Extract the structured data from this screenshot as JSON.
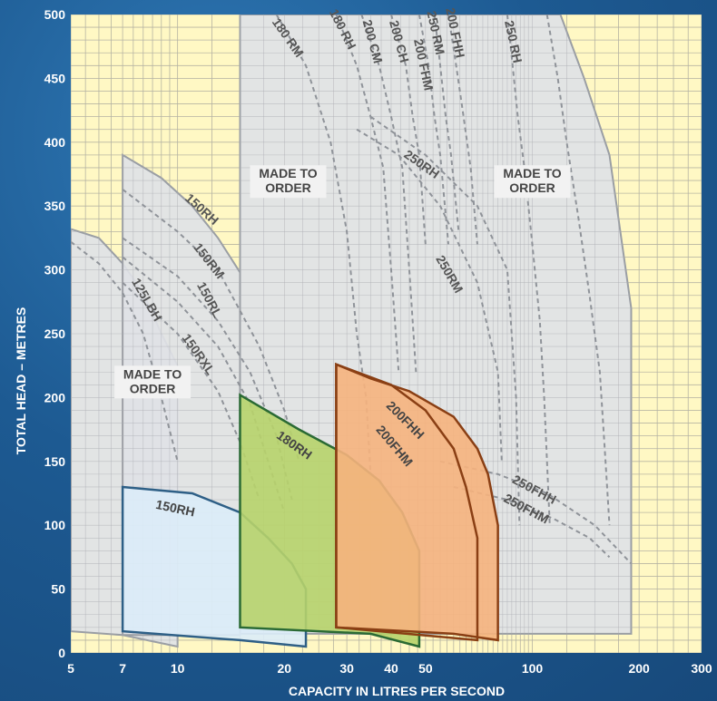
{
  "chart_data": {
    "type": "area",
    "title": "",
    "xlabel": "CAPACITY IN LITRES PER SECOND",
    "ylabel": "TOTAL HEAD – METRES",
    "xscale": "log",
    "xlim": [
      5,
      300
    ],
    "ylim": [
      0,
      500
    ],
    "x_ticks": [
      5,
      7,
      10,
      20,
      30,
      40,
      50,
      100,
      200,
      300
    ],
    "y_ticks": [
      0,
      50,
      100,
      150,
      200,
      250,
      300,
      350,
      400,
      450,
      500
    ],
    "grid": true,
    "colors": {
      "plot_background": "#fff8c4",
      "envelope_fill": "#e0e2e6",
      "envelope_edge": "#9a9ea4",
      "dashed_curve": "#8f9399",
      "150RH_fill": "#dcecf8",
      "150RH_edge": "#2e5f86",
      "180RH_fill": "#b7d36a",
      "180RH_edge": "#2a6a34",
      "200F_fill": "#f6b27d",
      "200F_edge": "#8a3f14"
    },
    "envelopes": [
      {
        "x": [
          5,
          7,
          10,
          10,
          5
        ],
        "y": [
          17,
          14,
          5,
          330,
          330
        ],
        "shape": [
          [
            5,
            17
          ],
          [
            7,
            14
          ],
          [
            10,
            5
          ],
          [
            10,
            0
          ],
          [
            5,
            0
          ]
        ]
      },
      {
        "top": [
          [
            5,
            332
          ],
          [
            6,
            325
          ],
          [
            7,
            305
          ],
          [
            8,
            280
          ],
          [
            9,
            250
          ],
          [
            10,
            225
          ],
          [
            10,
            0
          ]
        ]
      },
      {
        "top": [
          [
            7,
            390
          ],
          [
            9,
            372
          ],
          [
            11,
            350
          ],
          [
            13,
            325
          ],
          [
            15,
            300
          ],
          [
            15,
            0
          ],
          [
            7,
            0
          ]
        ]
      },
      {
        "top": [
          [
            15,
            500
          ],
          [
            120,
            500
          ],
          [
            140,
            450
          ],
          [
            165,
            390
          ],
          [
            190,
            270
          ],
          [
            190,
            15
          ],
          [
            15,
            15
          ]
        ]
      }
    ],
    "dashed_curves": [
      {
        "name": "125LBH",
        "points": [
          [
            5,
            322
          ],
          [
            6,
            305
          ],
          [
            7,
            282
          ],
          [
            8,
            250
          ],
          [
            9,
            200
          ],
          [
            10,
            150
          ]
        ]
      },
      {
        "name": "150RH",
        "points": [
          [
            7,
            363
          ],
          [
            10,
            330
          ],
          [
            13,
            300
          ],
          [
            17,
            240
          ],
          [
            20,
            190
          ],
          [
            22,
            150
          ]
        ]
      },
      {
        "name": "150RM",
        "points": [
          [
            7,
            325
          ],
          [
            10,
            295
          ],
          [
            13,
            260
          ],
          [
            16,
            220
          ],
          [
            19,
            170
          ],
          [
            21,
            120
          ]
        ]
      },
      {
        "name": "150RL",
        "points": [
          [
            7,
            310
          ],
          [
            10,
            275
          ],
          [
            13,
            240
          ],
          [
            16,
            195
          ],
          [
            18,
            150
          ],
          [
            20,
            110
          ]
        ]
      },
      {
        "name": "150RXL",
        "points": [
          [
            7,
            290
          ],
          [
            10,
            250
          ],
          [
            13,
            205
          ],
          [
            15,
            165
          ],
          [
            17,
            120
          ]
        ]
      },
      {
        "name": "180 RM",
        "points": [
          [
            19,
            500
          ],
          [
            23,
            460
          ],
          [
            27,
            400
          ],
          [
            30,
            330
          ],
          [
            32,
            250
          ],
          [
            34,
            200
          ],
          [
            35,
            140
          ]
        ]
      },
      {
        "name": "180 RH",
        "points": [
          [
            28,
            500
          ],
          [
            32,
            460
          ],
          [
            35,
            420
          ],
          [
            38,
            380
          ],
          [
            40,
            300
          ],
          [
            42,
            220
          ]
        ]
      },
      {
        "name": "200 CM",
        "points": [
          [
            33,
            500
          ],
          [
            37,
            460
          ],
          [
            40,
            420
          ],
          [
            43,
            380
          ],
          [
            45,
            300
          ],
          [
            47,
            220
          ]
        ]
      },
      {
        "name": "200 CH",
        "points": [
          [
            40,
            500
          ],
          [
            44,
            460
          ],
          [
            46,
            420
          ],
          [
            48,
            390
          ],
          [
            50,
            320
          ]
        ]
      },
      {
        "name": "200 FHM",
        "points": [
          [
            48,
            500
          ],
          [
            51,
            460
          ],
          [
            53,
            420
          ],
          [
            55,
            390
          ],
          [
            58,
            320
          ]
        ]
      },
      {
        "name": "250 RM",
        "points": [
          [
            53,
            500
          ],
          [
            55,
            460
          ],
          [
            57,
            420
          ],
          [
            59,
            390
          ],
          [
            62,
            330
          ]
        ]
      },
      {
        "name": "200 FHH",
        "points": [
          [
            58,
            500
          ],
          [
            61,
            460
          ],
          [
            64,
            420
          ],
          [
            67,
            380
          ],
          [
            70,
            320
          ]
        ]
      },
      {
        "name": "250 RH",
        "points": [
          [
            85,
            500
          ],
          [
            88,
            460
          ],
          [
            91,
            420
          ],
          [
            95,
            380
          ],
          [
            100,
            320
          ],
          [
            105,
            260
          ],
          [
            108,
            200
          ],
          [
            110,
            150
          ],
          [
            112,
            100
          ]
        ]
      },
      {
        "name": "250FHM",
        "points": [
          [
            110,
            500
          ],
          [
            118,
            450
          ],
          [
            125,
            400
          ],
          [
            135,
            340
          ],
          [
            145,
            280
          ],
          [
            155,
            220
          ],
          [
            160,
            160
          ],
          [
            165,
            100
          ]
        ]
      },
      {
        "name": "250RH",
        "points": [
          [
            35,
            420
          ],
          [
            50,
            390
          ],
          [
            70,
            350
          ],
          [
            85,
            300
          ],
          [
            90,
            200
          ],
          [
            92,
            100
          ]
        ]
      },
      {
        "name": "250RM",
        "points": [
          [
            32,
            410
          ],
          [
            42,
            390
          ],
          [
            55,
            350
          ],
          [
            70,
            290
          ],
          [
            80,
            220
          ],
          [
            82,
            150
          ]
        ]
      },
      {
        "name": "250FHH",
        "points": [
          [
            55,
            150
          ],
          [
            80,
            140
          ],
          [
            110,
            125
          ],
          [
            150,
            100
          ],
          [
            190,
            70
          ]
        ]
      },
      {
        "name": "250FHM",
        "points": [
          [
            60,
            130
          ],
          [
            85,
            120
          ],
          [
            115,
            105
          ],
          [
            145,
            90
          ],
          [
            165,
            75
          ]
        ]
      }
    ],
    "pump_regions": [
      {
        "name": "150RH",
        "outline": [
          [
            7,
            130
          ],
          [
            11,
            125
          ],
          [
            15,
            110
          ],
          [
            18,
            90
          ],
          [
            21,
            70
          ],
          [
            23,
            50
          ],
          [
            23,
            5
          ],
          [
            15,
            10
          ],
          [
            7,
            17
          ]
        ]
      },
      {
        "name": "180RH",
        "outline": [
          [
            15,
            202
          ],
          [
            22,
            175
          ],
          [
            30,
            155
          ],
          [
            37,
            135
          ],
          [
            43,
            110
          ],
          [
            48,
            80
          ],
          [
            48,
            5
          ],
          [
            35,
            15
          ],
          [
            15,
            20
          ]
        ]
      },
      {
        "name": "200FHH",
        "outline": [
          [
            28,
            226
          ],
          [
            35,
            215
          ],
          [
            45,
            205
          ],
          [
            60,
            185
          ],
          [
            70,
            160
          ],
          [
            75,
            140
          ],
          [
            80,
            100
          ],
          [
            80,
            10
          ],
          [
            60,
            15
          ],
          [
            28,
            20
          ]
        ]
      },
      {
        "name": "200FHM",
        "outline": [
          [
            28,
            226
          ],
          [
            40,
            210
          ],
          [
            50,
            190
          ],
          [
            60,
            160
          ],
          [
            65,
            130
          ],
          [
            70,
            90
          ],
          [
            70,
            10
          ],
          [
            28,
            20
          ]
        ]
      }
    ],
    "made_to_order_labels": [
      "MADE TO ORDER",
      "MADE TO ORDER",
      "MADE TO ORDER"
    ]
  }
}
